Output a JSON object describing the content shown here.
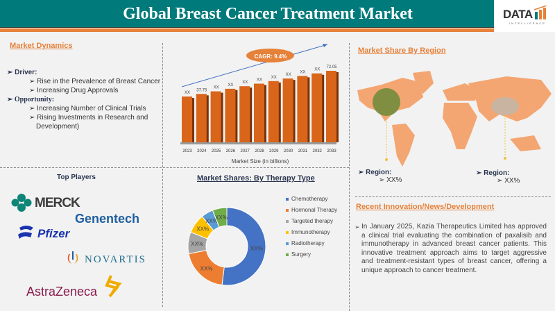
{
  "header": {
    "title": "Global Breast Cancer Treatment Market",
    "logo_text": "DATA",
    "logo_sub": "INTELLIGENCE"
  },
  "colors": {
    "header": "#007a7a",
    "accent": "#e6813a",
    "bar": "#d9651a",
    "map": "#f4a672"
  },
  "dynamics": {
    "title": "Market Dynamics",
    "driver_label": "Driver:",
    "drivers": [
      "Rise in the Prevalence of Breast Cancer",
      "Increasing Drug Approvals"
    ],
    "opportunity_label": "Opportunity:",
    "opportunities": [
      "Increasing Number of Clinical Trials",
      "Rising Investments in Research and Development)"
    ]
  },
  "chart_data": [
    {
      "type": "bar",
      "xlabel": "Market Size (in billions)",
      "annotation": "CAGR: 9.4%",
      "categories": [
        "2023",
        "2024",
        "2025",
        "2026",
        "2027",
        "2028",
        "2029",
        "2030",
        "2031",
        "2032",
        "2033"
      ],
      "values": [
        33.9,
        37.75,
        41.6,
        45.4,
        49.2,
        53.0,
        56.8,
        60.6,
        64.4,
        68.2,
        72.05
      ],
      "data_labels": [
        "XX",
        "37.75",
        "XX",
        "XX",
        "XX",
        "XX",
        "XX",
        "XX",
        "XX",
        "XX",
        "72.05"
      ]
    },
    {
      "type": "pie",
      "title": "Market Shares: By Therapy Type",
      "categories": [
        "Chemotherapy",
        "Hormonal Therapy",
        "Targeted therapy",
        "Immunotherapy",
        "Radiotherapy",
        "Surgery"
      ],
      "values": [
        52,
        20,
        9,
        8,
        5,
        6
      ],
      "data_labels": [
        "XX%",
        "XX%",
        "XX%",
        "XX%",
        "XX%",
        "XX%"
      ],
      "colors": [
        "#4472c4",
        "#ed7d31",
        "#a5a5a5",
        "#ffc000",
        "#5b9bd5",
        "#70ad47"
      ],
      "legend": "right"
    }
  ],
  "players": {
    "title": "Top Players",
    "items": [
      "MERCK",
      "Genentech",
      "Pfizer",
      "NOVARTIS",
      "AstraZeneca"
    ]
  },
  "region": {
    "title": "Market Share By Region",
    "items": [
      {
        "label": "Region:",
        "value": "XX%"
      },
      {
        "label": "Region:",
        "value": "XX%"
      }
    ]
  },
  "news": {
    "title": "Recent Innovation/News/Development",
    "text": "In January 2025, Kazia Therapeutics Limited has approved a clinical trial evaluating the combination of paxalisib and immunotherapy in advanced breast cancer patients. This innovative treatment approach aims to target aggressive and treatment-resistant types of breast cancer, offering a unique approach to cancer treatment."
  }
}
